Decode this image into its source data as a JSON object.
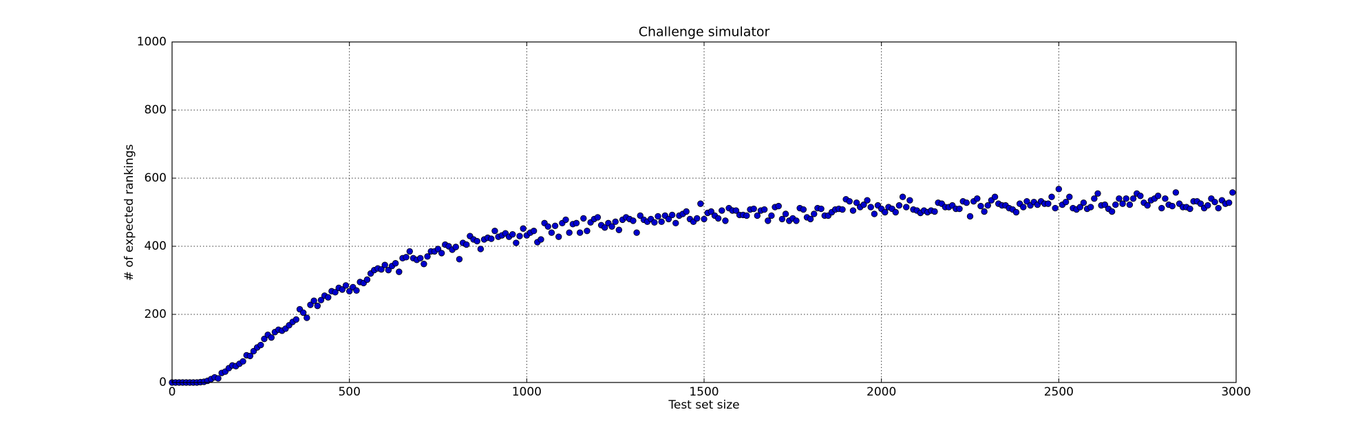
{
  "chart_data": {
    "type": "scatter",
    "title": "Challenge simulator",
    "xlabel": "Test set size",
    "ylabel": "# of expected rankings",
    "xlim": [
      0,
      3000
    ],
    "ylim": [
      0,
      1000
    ],
    "xticks": [
      0,
      500,
      1000,
      1500,
      2000,
      2500,
      3000
    ],
    "yticks": [
      0,
      200,
      400,
      600,
      800,
      1000
    ],
    "grid": true,
    "color": "#0000cc",
    "x": [
      0,
      10,
      20,
      30,
      40,
      50,
      60,
      70,
      80,
      90,
      100,
      110,
      120,
      130,
      140,
      150,
      160,
      170,
      180,
      190,
      200,
      210,
      220,
      230,
      240,
      250,
      260,
      270,
      280,
      290,
      300,
      310,
      320,
      330,
      340,
      350,
      360,
      370,
      380,
      390,
      400,
      410,
      420,
      430,
      440,
      450,
      460,
      470,
      480,
      490,
      500,
      510,
      520,
      530,
      540,
      550,
      560,
      570,
      580,
      590,
      600,
      610,
      620,
      630,
      640,
      650,
      660,
      670,
      680,
      690,
      700,
      710,
      720,
      730,
      740,
      750,
      760,
      770,
      780,
      790,
      800,
      810,
      820,
      830,
      840,
      850,
      860,
      870,
      880,
      890,
      900,
      910,
      920,
      930,
      940,
      950,
      960,
      970,
      980,
      990,
      1000,
      1010,
      1020,
      1030,
      1040,
      1050,
      1060,
      1070,
      1080,
      1090,
      1100,
      1110,
      1120,
      1130,
      1140,
      1150,
      1160,
      1170,
      1180,
      1190,
      1200,
      1210,
      1220,
      1230,
      1240,
      1250,
      1260,
      1270,
      1280,
      1290,
      1300,
      1310,
      1320,
      1330,
      1340,
      1350,
      1360,
      1370,
      1380,
      1390,
      1400,
      1410,
      1420,
      1430,
      1440,
      1450,
      1460,
      1470,
      1480,
      1490,
      1500,
      1510,
      1520,
      1530,
      1540,
      1550,
      1560,
      1570,
      1580,
      1590,
      1600,
      1610,
      1620,
      1630,
      1640,
      1650,
      1660,
      1670,
      1680,
      1690,
      1700,
      1710,
      1720,
      1730,
      1740,
      1750,
      1760,
      1770,
      1780,
      1790,
      1800,
      1810,
      1820,
      1830,
      1840,
      1850,
      1860,
      1870,
      1880,
      1890,
      1900,
      1910,
      1920,
      1930,
      1940,
      1950,
      1960,
      1970,
      1980,
      1990,
      2000,
      2010,
      2020,
      2030,
      2040,
      2050,
      2060,
      2070,
      2080,
      2090,
      2100,
      2110,
      2120,
      2130,
      2140,
      2150,
      2160,
      2170,
      2180,
      2190,
      2200,
      2210,
      2220,
      2230,
      2240,
      2250,
      2260,
      2270,
      2280,
      2290,
      2300,
      2310,
      2320,
      2330,
      2340,
      2350,
      2360,
      2370,
      2380,
      2390,
      2400,
      2410,
      2420,
      2430,
      2440,
      2450,
      2460,
      2470,
      2480,
      2490,
      2500,
      2510,
      2520,
      2530,
      2540,
      2550,
      2560,
      2570,
      2580,
      2590,
      2600,
      2610,
      2620,
      2630,
      2640,
      2650,
      2660,
      2670,
      2680,
      2690,
      2700,
      2710,
      2720,
      2730,
      2740,
      2750,
      2760,
      2770,
      2780,
      2790,
      2800,
      2810,
      2820,
      2830,
      2840,
      2850,
      2860,
      2870,
      2880,
      2890,
      2900,
      2910,
      2920,
      2930,
      2940,
      2950,
      2960,
      2970,
      2980,
      2990
    ],
    "values": [
      0,
      0,
      0,
      0,
      0,
      0,
      0,
      0,
      1,
      2,
      5,
      10,
      15,
      12,
      28,
      32,
      42,
      50,
      48,
      55,
      62,
      80,
      78,
      92,
      103,
      110,
      128,
      140,
      132,
      148,
      155,
      152,
      158,
      168,
      178,
      185,
      215,
      205,
      190,
      228,
      240,
      225,
      242,
      255,
      250,
      268,
      265,
      278,
      273,
      285,
      268,
      280,
      270,
      295,
      292,
      302,
      320,
      330,
      335,
      332,
      345,
      330,
      342,
      350,
      325,
      365,
      368,
      385,
      365,
      360,
      365,
      348,
      370,
      385,
      385,
      392,
      380,
      405,
      400,
      390,
      398,
      362,
      410,
      405,
      430,
      420,
      415,
      392,
      420,
      425,
      422,
      445,
      428,
      432,
      438,
      428,
      435,
      410,
      430,
      452,
      432,
      440,
      445,
      412,
      420,
      468,
      458,
      440,
      460,
      428,
      468,
      478,
      440,
      465,
      468,
      440,
      482,
      445,
      470,
      480,
      485,
      462,
      455,
      468,
      458,
      472,
      448,
      478,
      485,
      480,
      475,
      440,
      490,
      478,
      472,
      480,
      470,
      488,
      472,
      490,
      480,
      492,
      468,
      490,
      495,
      502,
      480,
      472,
      482,
      525,
      480,
      498,
      502,
      490,
      482,
      505,
      475,
      512,
      505,
      505,
      492,
      492,
      490,
      508,
      510,
      490,
      505,
      508,
      475,
      490,
      515,
      518,
      480,
      495,
      475,
      482,
      475,
      512,
      508,
      485,
      480,
      495,
      512,
      510,
      490,
      490,
      500,
      508,
      510,
      508,
      538,
      532,
      505,
      528,
      515,
      522,
      535,
      515,
      495,
      520,
      510,
      500,
      515,
      510,
      500,
      520,
      545,
      515,
      535,
      508,
      505,
      498,
      505,
      500,
      505,
      502,
      528,
      525,
      515,
      515,
      520,
      510,
      510,
      532,
      528,
      488,
      532,
      540,
      518,
      502,
      520,
      535,
      545,
      525,
      520,
      520,
      512,
      508,
      500,
      525,
      515,
      532,
      520,
      530,
      522,
      532,
      525,
      525,
      545,
      512,
      568,
      522,
      530,
      545,
      512,
      508,
      515,
      528,
      510,
      515,
      540,
      555,
      520,
      522,
      510,
      502,
      522,
      540,
      525,
      540,
      522,
      540,
      555,
      548,
      528,
      520,
      535,
      540,
      548,
      512,
      540,
      522,
      518,
      558,
      525,
      515,
      515,
      510,
      532,
      532,
      525,
      512,
      520,
      540,
      530,
      512,
      535,
      525,
      528,
      558
    ]
  }
}
